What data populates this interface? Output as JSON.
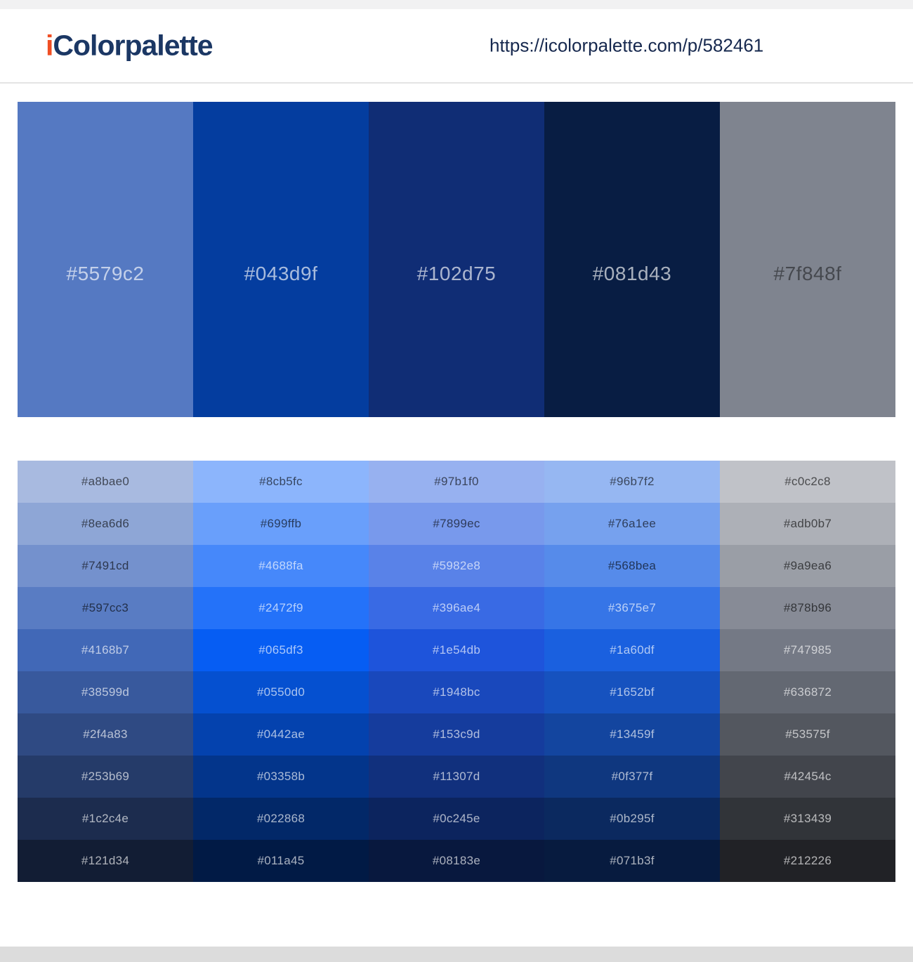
{
  "header": {
    "logo_prefix": "i",
    "logo_rest": "Colorpalette",
    "url": "https://icolorpalette.com/p/582461"
  },
  "colors": {
    "logo_prefix_color": "#f04e23",
    "logo_text_color": "#1b3764",
    "url_text_color": "#16284e",
    "big_light_text": "rgba(255,255,255,0.65)",
    "big_dark_text": "rgba(0,0,0,0.45)",
    "cell_light_text": "rgba(255,255,255,0.66)",
    "cell_dark_text": "rgba(0,0,0,0.62)",
    "top_strip": "#f1f1f2",
    "footer_strip": "#dcdcdc"
  },
  "palette": {
    "main_colors": [
      {
        "hex": "#5579c2",
        "text": "light"
      },
      {
        "hex": "#043d9f",
        "text": "light"
      },
      {
        "hex": "#102d75",
        "text": "light"
      },
      {
        "hex": "#081d43",
        "text": "light"
      },
      {
        "hex": "#7f848f",
        "text": "dark"
      }
    ],
    "shade_rows": [
      [
        {
          "hex": "#a8bae0",
          "text": "dark"
        },
        {
          "hex": "#8cb5fc",
          "text": "dark"
        },
        {
          "hex": "#97b1f0",
          "text": "dark"
        },
        {
          "hex": "#96b7f2",
          "text": "dark"
        },
        {
          "hex": "#c0c2c8",
          "text": "dark"
        }
      ],
      [
        {
          "hex": "#8ea6d6",
          "text": "dark"
        },
        {
          "hex": "#699ffb",
          "text": "dark"
        },
        {
          "hex": "#7899ec",
          "text": "dark"
        },
        {
          "hex": "#76a1ee",
          "text": "dark"
        },
        {
          "hex": "#adb0b7",
          "text": "dark"
        }
      ],
      [
        {
          "hex": "#7491cd",
          "text": "dark"
        },
        {
          "hex": "#4688fa",
          "text": "light"
        },
        {
          "hex": "#5982e8",
          "text": "light"
        },
        {
          "hex": "#568bea",
          "text": "dark"
        },
        {
          "hex": "#9a9ea6",
          "text": "dark"
        }
      ],
      [
        {
          "hex": "#597cc3",
          "text": "dark"
        },
        {
          "hex": "#2472f9",
          "text": "light"
        },
        {
          "hex": "#396ae4",
          "text": "light"
        },
        {
          "hex": "#3675e7",
          "text": "light"
        },
        {
          "hex": "#878b96",
          "text": "dark"
        }
      ],
      [
        {
          "hex": "#4168b7",
          "text": "light"
        },
        {
          "hex": "#065df3",
          "text": "light"
        },
        {
          "hex": "#1e54db",
          "text": "light"
        },
        {
          "hex": "#1a60df",
          "text": "light"
        },
        {
          "hex": "#747985",
          "text": "light"
        }
      ],
      [
        {
          "hex": "#38599d",
          "text": "light"
        },
        {
          "hex": "#0550d0",
          "text": "light"
        },
        {
          "hex": "#1948bc",
          "text": "light"
        },
        {
          "hex": "#1652bf",
          "text": "light"
        },
        {
          "hex": "#636872",
          "text": "light"
        }
      ],
      [
        {
          "hex": "#2f4a83",
          "text": "light"
        },
        {
          "hex": "#0442ae",
          "text": "light"
        },
        {
          "hex": "#153c9d",
          "text": "light"
        },
        {
          "hex": "#13459f",
          "text": "light"
        },
        {
          "hex": "#53575f",
          "text": "light"
        }
      ],
      [
        {
          "hex": "#253b69",
          "text": "light"
        },
        {
          "hex": "#03358b",
          "text": "light"
        },
        {
          "hex": "#11307d",
          "text": "light"
        },
        {
          "hex": "#0f377f",
          "text": "light"
        },
        {
          "hex": "#42454c",
          "text": "light"
        }
      ],
      [
        {
          "hex": "#1c2c4e",
          "text": "light"
        },
        {
          "hex": "#022868",
          "text": "light"
        },
        {
          "hex": "#0c245e",
          "text": "light"
        },
        {
          "hex": "#0b295f",
          "text": "light"
        },
        {
          "hex": "#313439",
          "text": "light"
        }
      ],
      [
        {
          "hex": "#121d34",
          "text": "light"
        },
        {
          "hex": "#011a45",
          "text": "light"
        },
        {
          "hex": "#08183e",
          "text": "light"
        },
        {
          "hex": "#071b3f",
          "text": "light"
        },
        {
          "hex": "#212226",
          "text": "light"
        }
      ]
    ]
  }
}
